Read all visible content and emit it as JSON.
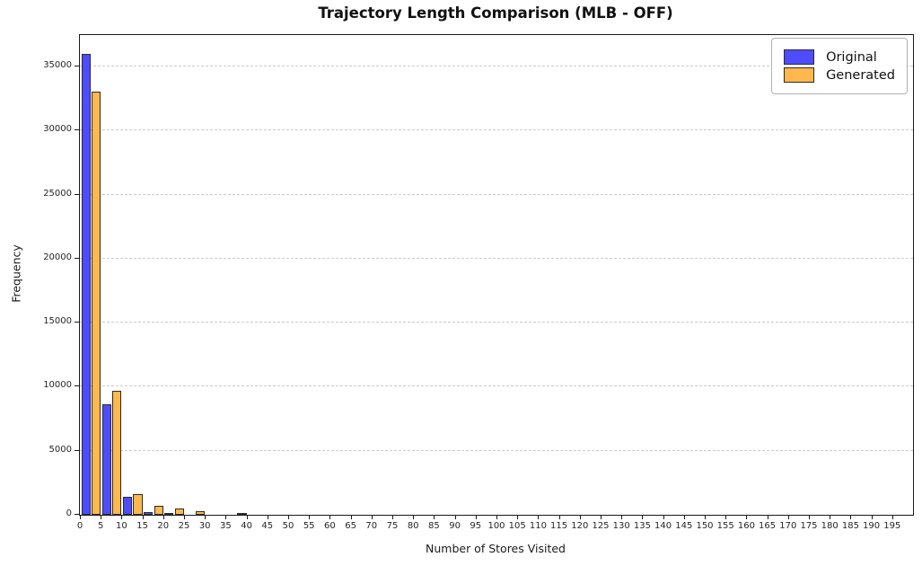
{
  "title": "Trajectory Length Comparison (MLB - OFF)",
  "xlabel": "Number of Stores Visited",
  "ylabel": "Frequency",
  "colors": {
    "original_fill": "#4D4DFF",
    "generated_fill": "#FFB84D",
    "bar_edge": "#2b2b2b",
    "grid": "#cccccc",
    "spine": "#1a1a1a"
  },
  "chart_data": {
    "type": "bar",
    "subtype": "grouped-histogram",
    "title": "Trajectory Length Comparison (MLB - OFF)",
    "xlabel": "Number of Stores Visited",
    "ylabel": "Frequency",
    "bin_width": 5,
    "bin_starts": [
      0,
      5,
      10,
      15,
      20,
      25,
      30,
      35,
      40,
      45,
      50,
      55,
      60,
      65,
      70,
      75,
      80,
      85,
      90,
      95,
      100,
      105,
      110,
      115,
      120,
      125,
      130,
      135,
      140,
      145,
      150,
      155,
      160,
      165,
      170,
      175,
      180,
      185,
      190,
      195
    ],
    "series": [
      {
        "name": "Original",
        "color": "#4D4DFF",
        "values": [
          36000,
          8600,
          1400,
          200,
          100,
          0,
          0,
          0,
          0,
          0,
          0,
          0,
          0,
          0,
          0,
          0,
          0,
          0,
          0,
          0,
          0,
          0,
          0,
          0,
          0,
          0,
          0,
          0,
          0,
          0,
          0,
          0,
          0,
          0,
          0,
          0,
          0,
          0,
          0,
          0
        ]
      },
      {
        "name": "Generated",
        "color": "#FFB84D",
        "values": [
          33000,
          9700,
          1600,
          700,
          520,
          250,
          0,
          150,
          0,
          0,
          0,
          0,
          0,
          0,
          0,
          0,
          0,
          0,
          0,
          0,
          0,
          0,
          0,
          0,
          0,
          0,
          0,
          0,
          0,
          0,
          0,
          0,
          0,
          0,
          0,
          0,
          0,
          0,
          0,
          0
        ]
      }
    ],
    "xticks": [
      0,
      5,
      10,
      15,
      20,
      25,
      30,
      35,
      40,
      45,
      50,
      55,
      60,
      65,
      70,
      75,
      80,
      85,
      90,
      95,
      100,
      105,
      110,
      115,
      120,
      125,
      130,
      135,
      140,
      145,
      150,
      155,
      160,
      165,
      170,
      175,
      180,
      185,
      190,
      195
    ],
    "yticks": [
      0,
      5000,
      10000,
      15000,
      20000,
      25000,
      30000,
      35000
    ],
    "xlim": [
      0,
      200
    ],
    "ylim": [
      0,
      37450
    ],
    "grid": "horizontal-dashed",
    "legend_position": "upper-right"
  }
}
